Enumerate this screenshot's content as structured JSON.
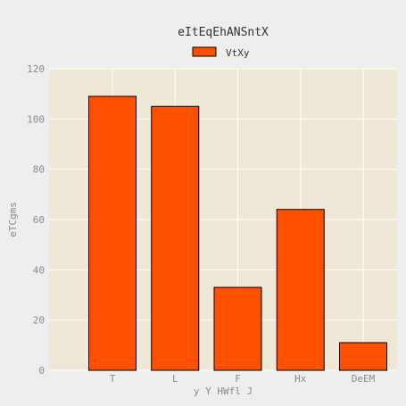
{
  "chart_data": {
    "type": "bar",
    "title": "eItEqEhANSntX",
    "xlabel": "y Y HWfl J",
    "ylabel": "eTCgms",
    "categories": [
      "T",
      "L",
      "F",
      "Hx",
      "DeEM"
    ],
    "series": [
      {
        "name": "VtXy",
        "values": [
          109,
          105,
          33,
          64,
          11
        ]
      }
    ],
    "ylim": [
      0,
      120
    ],
    "yticks": [
      0,
      20,
      40,
      60,
      80,
      100,
      120
    ],
    "grid": true,
    "legend_position": "top-center",
    "colors": {
      "bar": "#ff5000",
      "bar_edge": "#000000",
      "plot_background": "#efe8d7",
      "grid": "#ffffff",
      "tick_text": "#8a8a8a"
    }
  }
}
